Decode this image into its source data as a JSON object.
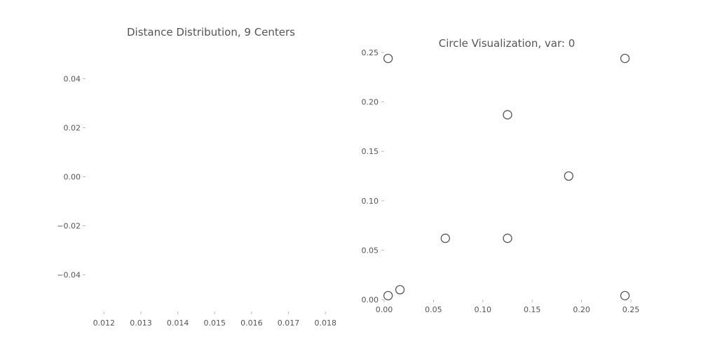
{
  "chart_data": [
    {
      "type": "histogram",
      "title": "Distance Distribution, 9 Centers",
      "xlabel": "",
      "ylabel": "",
      "xlim": [
        0.0115,
        0.0183
      ],
      "ylim": [
        -0.055,
        0.055
      ],
      "x_ticks": [
        {
          "value": 0.012,
          "label": "0.012"
        },
        {
          "value": 0.013,
          "label": "0.013"
        },
        {
          "value": 0.014,
          "label": "0.014"
        },
        {
          "value": 0.015,
          "label": "0.015"
        },
        {
          "value": 0.016,
          "label": "0.016"
        },
        {
          "value": 0.017,
          "label": "0.017"
        },
        {
          "value": 0.018,
          "label": "0.018"
        }
      ],
      "y_ticks": [
        {
          "value": 0.04,
          "label": "0.04"
        },
        {
          "value": 0.02,
          "label": "0.02"
        },
        {
          "value": 0.0,
          "label": "0.00"
        },
        {
          "value": -0.02,
          "label": "−0.02"
        },
        {
          "value": -0.04,
          "label": "−0.04"
        }
      ],
      "values": [],
      "grid": false
    },
    {
      "type": "scatter",
      "title": "Circle Visualization, var: 0",
      "xlabel": "",
      "ylabel": "",
      "xlim": [
        0.0,
        0.25
      ],
      "ylim": [
        0.0,
        0.25
      ],
      "x_ticks": [
        {
          "value": 0.0,
          "label": "0.00"
        },
        {
          "value": 0.05,
          "label": "0.05"
        },
        {
          "value": 0.1,
          "label": "0.10"
        },
        {
          "value": 0.15,
          "label": "0.15"
        },
        {
          "value": 0.2,
          "label": "0.20"
        },
        {
          "value": 0.25,
          "label": "0.25"
        }
      ],
      "y_ticks": [
        {
          "value": 0.0,
          "label": "0.00"
        },
        {
          "value": 0.05,
          "label": "0.05"
        },
        {
          "value": 0.1,
          "label": "0.10"
        },
        {
          "value": 0.15,
          "label": "0.15"
        },
        {
          "value": 0.2,
          "label": "0.20"
        },
        {
          "value": 0.25,
          "label": "0.25"
        }
      ],
      "points": [
        {
          "x": 0.004,
          "y": 0.244
        },
        {
          "x": 0.244,
          "y": 0.244
        },
        {
          "x": 0.125,
          "y": 0.187
        },
        {
          "x": 0.187,
          "y": 0.125
        },
        {
          "x": 0.062,
          "y": 0.062
        },
        {
          "x": 0.125,
          "y": 0.062
        },
        {
          "x": 0.004,
          "y": 0.004
        },
        {
          "x": 0.016,
          "y": 0.01
        },
        {
          "x": 0.244,
          "y": 0.004
        }
      ],
      "marker": "open-circle",
      "marker_color": "#555555",
      "grid": false
    }
  ]
}
